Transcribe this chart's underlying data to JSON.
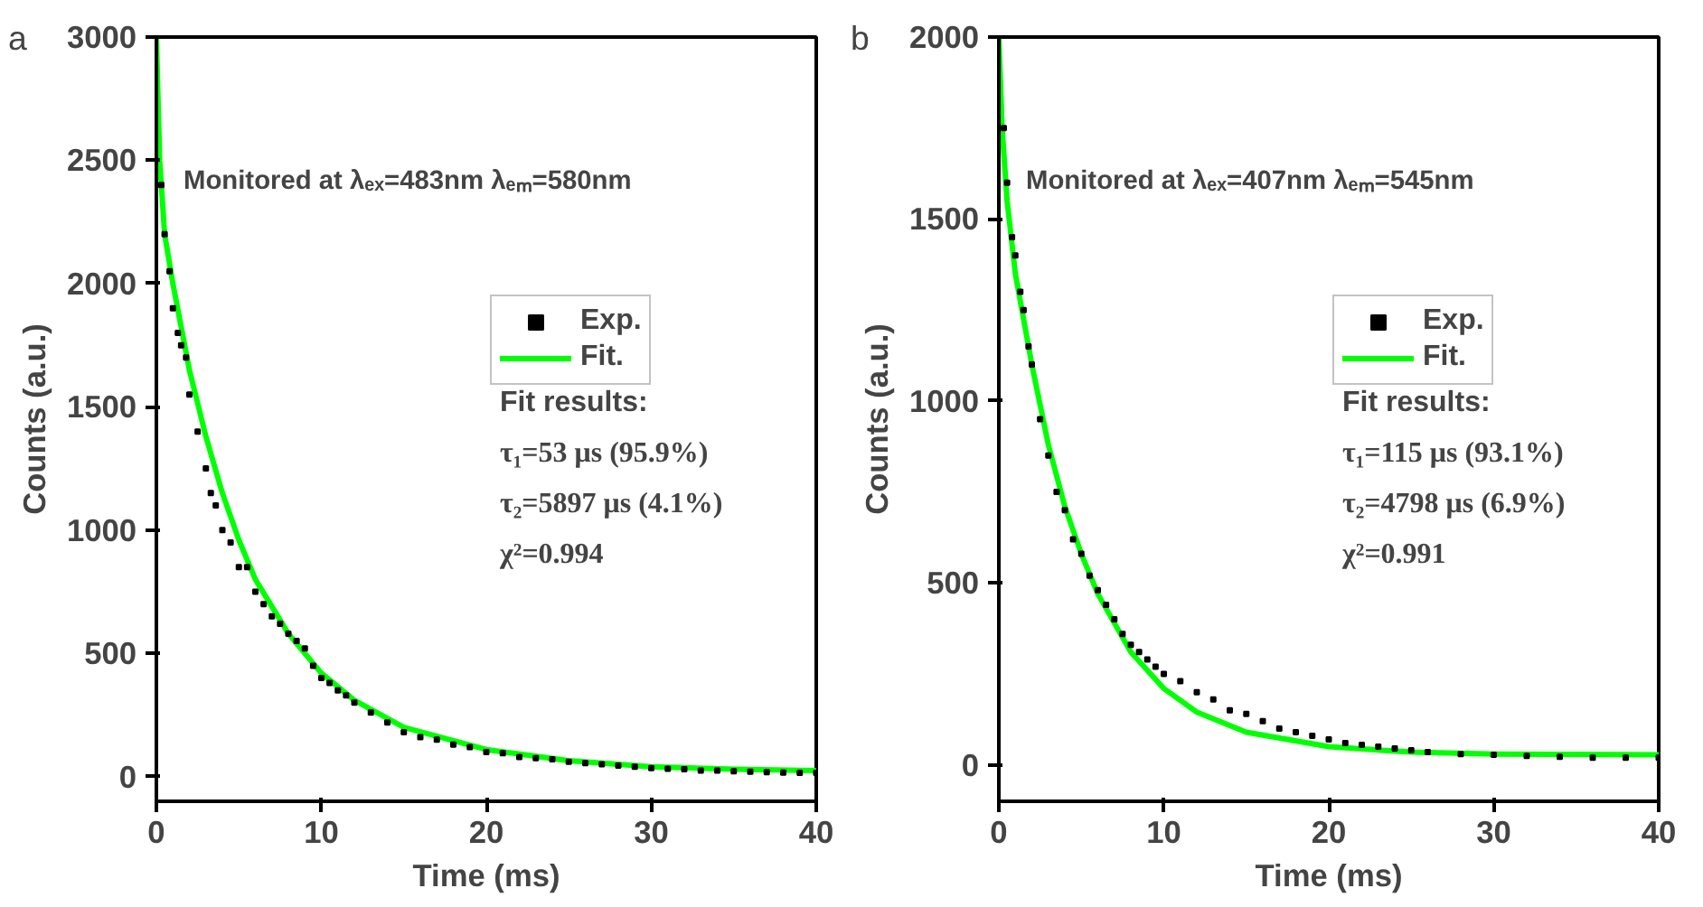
{
  "chart_data": [
    {
      "type": "scatter",
      "xlabel": "Time (ms)",
      "ylabel": "Counts (a.u.)",
      "xlim": [
        0,
        40
      ],
      "ylim": [
        -100,
        3000
      ],
      "xticks": [
        0,
        10,
        20,
        30,
        40
      ],
      "yticks": [
        0,
        500,
        1000,
        1500,
        2000,
        2500,
        3000
      ],
      "grid": false,
      "legend": "right",
      "annotations": [
        "a",
        "Monitored at λₑₓ=483nm λₑₘ=580nm",
        "Fit results:",
        "τ₁=53 μs (95.9%)",
        "τ₂=5897 μs (4.1%)",
        "χ²=0.994"
      ],
      "series": [
        {
          "name": "Exp.",
          "marker": "square",
          "color": "#000000",
          "x": [
            0.3,
            0.5,
            0.8,
            1,
            1.3,
            1.5,
            1.8,
            2,
            2.5,
            3,
            3.3,
            3.6,
            4,
            4.5,
            5,
            5.5,
            6,
            6.5,
            7,
            7.5,
            8,
            8.5,
            9,
            9.5,
            10,
            10.5,
            11,
            11.5,
            12,
            13,
            14,
            15,
            16,
            17,
            18,
            19,
            20,
            21,
            22,
            23,
            24,
            25,
            26,
            27,
            28,
            29,
            30,
            31,
            32,
            33,
            34,
            35,
            36,
            37,
            38,
            39,
            40
          ],
          "values": [
            2400,
            2200,
            2050,
            1900,
            1800,
            1750,
            1700,
            1550,
            1400,
            1250,
            1150,
            1100,
            1000,
            950,
            850,
            850,
            750,
            700,
            650,
            620,
            580,
            550,
            520,
            450,
            400,
            380,
            350,
            330,
            300,
            260,
            220,
            180,
            160,
            150,
            130,
            120,
            100,
            95,
            80,
            75,
            70,
            60,
            55,
            50,
            45,
            40,
            35,
            32,
            30,
            25,
            25,
            22,
            20,
            18,
            16,
            15,
            15
          ]
        },
        {
          "name": "Fit.",
          "type": "line",
          "line_style": "solid",
          "color": "#00ff00",
          "x": [
            0,
            0.2,
            0.5,
            1,
            2,
            3,
            4,
            5,
            6,
            8,
            10,
            12,
            15,
            20,
            25,
            30,
            35,
            40
          ],
          "values": [
            3000,
            2500,
            2200,
            2000,
            1650,
            1380,
            1150,
            960,
            800,
            580,
            420,
            310,
            200,
            110,
            65,
            40,
            30,
            25
          ]
        }
      ]
    },
    {
      "type": "scatter",
      "xlabel": "Time (ms)",
      "ylabel": "Counts (a.u.)",
      "xlim": [
        0,
        40
      ],
      "ylim": [
        -100,
        2000
      ],
      "xticks": [
        0,
        10,
        20,
        30,
        40
      ],
      "yticks": [
        0,
        500,
        1000,
        1500,
        2000
      ],
      "grid": false,
      "legend": "right",
      "annotations": [
        "b",
        "Monitored at λₑₓ=407nm λₑₘ=545nm",
        "Fit results:",
        "τ₁=115 μs (93.1%)",
        "τ₂=4798 μs (6.9%)",
        "χ²=0.991"
      ],
      "series": [
        {
          "name": "Exp.",
          "marker": "square",
          "color": "#000000",
          "x": [
            0.3,
            0.5,
            0.8,
            1,
            1.3,
            1.5,
            1.8,
            2,
            2.5,
            3,
            3.5,
            4,
            4.5,
            5,
            5.5,
            6,
            6.5,
            7,
            7.5,
            8,
            8.5,
            9,
            9.5,
            10,
            11,
            12,
            13,
            14,
            15,
            16,
            17,
            18,
            19,
            20,
            21,
            22,
            23,
            24,
            25,
            26,
            28,
            30,
            32,
            34,
            36,
            38,
            40
          ],
          "values": [
            1750,
            1600,
            1450,
            1400,
            1300,
            1250,
            1150,
            1100,
            950,
            850,
            750,
            700,
            620,
            580,
            520,
            480,
            440,
            400,
            360,
            330,
            310,
            290,
            270,
            250,
            230,
            200,
            180,
            150,
            140,
            120,
            100,
            90,
            80,
            70,
            60,
            55,
            50,
            45,
            40,
            35,
            30,
            28,
            25,
            22,
            20,
            20,
            20
          ]
        },
        {
          "name": "Fit.",
          "type": "line",
          "line_style": "solid",
          "color": "#00ff00",
          "x": [
            0,
            0.2,
            0.5,
            1,
            2,
            3,
            4,
            5,
            6,
            8,
            10,
            12,
            15,
            20,
            25,
            30,
            40
          ],
          "values": [
            2000,
            1750,
            1550,
            1350,
            1100,
            880,
            710,
            580,
            470,
            310,
            210,
            145,
            90,
            50,
            35,
            30,
            28
          ]
        }
      ]
    }
  ]
}
